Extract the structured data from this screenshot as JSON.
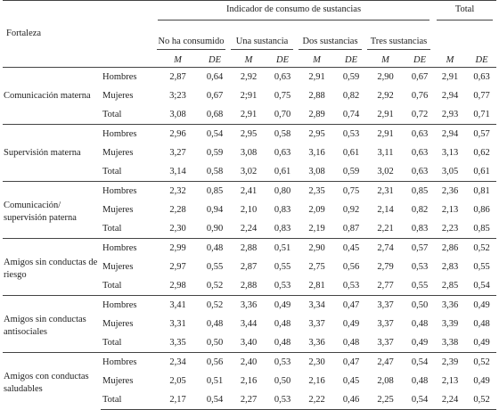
{
  "header": {
    "fortaleza": "Fortaleza",
    "indicador": "Indicador de consumo de sustancias",
    "total": "Total",
    "groups": [
      "No ha consumido",
      "Una sustancia",
      "Dos sustancias",
      "Tres sustancias"
    ],
    "m": "M",
    "de": "DE"
  },
  "blocks": [
    {
      "name": "Comunicación materna",
      "rows": [
        {
          "sex": "Hombres",
          "vals": [
            "2,87",
            "0,64",
            "2,92",
            "0,63",
            "2,91",
            "0,59",
            "2,90",
            "0,67",
            "2,91",
            "0,63"
          ]
        },
        {
          "sex": "Mujeres",
          "vals": [
            "3;23",
            "0,67",
            "2;91",
            "0,75",
            "2,88",
            "0,82",
            "2,92",
            "0,76",
            "2,94",
            "0,77"
          ]
        },
        {
          "sex": "Total",
          "vals": [
            "3,08",
            "0,68",
            "2,91",
            "0,70",
            "2,89",
            "0,74",
            "2,91",
            "0,72",
            "2,93",
            "0,71"
          ]
        }
      ]
    },
    {
      "name": "Supervisión materna",
      "rows": [
        {
          "sex": "Hombres",
          "vals": [
            "2,96",
            "0,54",
            "2,95",
            "0,58",
            "2,95",
            "0,53",
            "2,91",
            "0,63",
            "2,94",
            "0,57"
          ]
        },
        {
          "sex": "Mujeres",
          "vals": [
            "3,27",
            "0,59",
            "3,08",
            "0,63",
            "3,16",
            "0,61",
            "3,11",
            "0,63",
            "3,13",
            "0,62"
          ]
        },
        {
          "sex": "Total",
          "vals": [
            "3,14",
            "0,58",
            "3,02",
            "0,61",
            "3,08",
            "0,59",
            "3,02",
            "0,63",
            "3,05",
            "0,61"
          ]
        }
      ]
    },
    {
      "name": "Comunicación/ supervisión paterna",
      "rows": [
        {
          "sex": "Hombres",
          "vals": [
            "2,32",
            "0,85",
            "2,41",
            "0,80",
            "2,35",
            "0,75",
            "2,31",
            "0,85",
            "2,36",
            "0,81"
          ]
        },
        {
          "sex": "Mujeres",
          "vals": [
            "2,28",
            "0,94",
            "2,10",
            "0,83",
            "2,09",
            "0,92",
            "2,14",
            "0,82",
            "2,13",
            "0,86"
          ]
        },
        {
          "sex": "Total",
          "vals": [
            "2,30",
            "0,90",
            "2,24",
            "0,83",
            "2,19",
            "0,87",
            "2,21",
            "0,83",
            "2,23",
            "0,85"
          ]
        }
      ]
    },
    {
      "name": "Amigos sin conductas de riesgo",
      "rows": [
        {
          "sex": "Hombres",
          "vals": [
            "2,99",
            "0,48",
            "2,88",
            "0,51",
            "2,90",
            "0,45",
            "2,74",
            "0,57",
            "2,86",
            "0,52"
          ]
        },
        {
          "sex": "Mujeres",
          "vals": [
            "2,97",
            "0,55",
            "2,87",
            "0,55",
            "2,75",
            "0,56",
            "2,79",
            "0,53",
            "2,83",
            "0,55"
          ]
        },
        {
          "sex": "Total",
          "vals": [
            "2,98",
            "0,52",
            "2,88",
            "0,53",
            "2,81",
            "0,53",
            "2,77",
            "0,55",
            "2,85",
            "0,54"
          ]
        }
      ]
    },
    {
      "name": "Amigos sin conductas antisociales",
      "rows": [
        {
          "sex": "Hombres",
          "vals": [
            "3,41",
            "0,52",
            "3,36",
            "0,49",
            "3,34",
            "0,47",
            "3,37",
            "0,50",
            "3,36",
            "0,49"
          ]
        },
        {
          "sex": "Mujeres",
          "vals": [
            "3,31",
            "0,48",
            "3,44",
            "0,48",
            "3,37",
            "0,49",
            "3,37",
            "0,48",
            "3,39",
            "0,48"
          ]
        },
        {
          "sex": "Total",
          "vals": [
            "3,35",
            "0,50",
            "3,40",
            "0,48",
            "3,36",
            "0,48",
            "3,37",
            "0,49",
            "3,38",
            "0,49"
          ]
        }
      ]
    },
    {
      "name": "Amigos con conductas saludables",
      "rows": [
        {
          "sex": "Hombres",
          "vals": [
            "2,34",
            "0,56",
            "2,40",
            "0,53",
            "2,30",
            "0,47",
            "2,47",
            "0,54",
            "2,39",
            "0,52"
          ]
        },
        {
          "sex": "Mujeres",
          "vals": [
            "2,05",
            "0,51",
            "2,16",
            "0,50",
            "2,16",
            "0,45",
            "2,08",
            "0,48",
            "2,13",
            "0,49"
          ]
        },
        {
          "sex": "Total",
          "vals": [
            "2,17",
            "0,54",
            "2,27",
            "0,53",
            "2,22",
            "0,46",
            "2,25",
            "0,54",
            "2,24",
            "0,52"
          ]
        }
      ]
    }
  ]
}
